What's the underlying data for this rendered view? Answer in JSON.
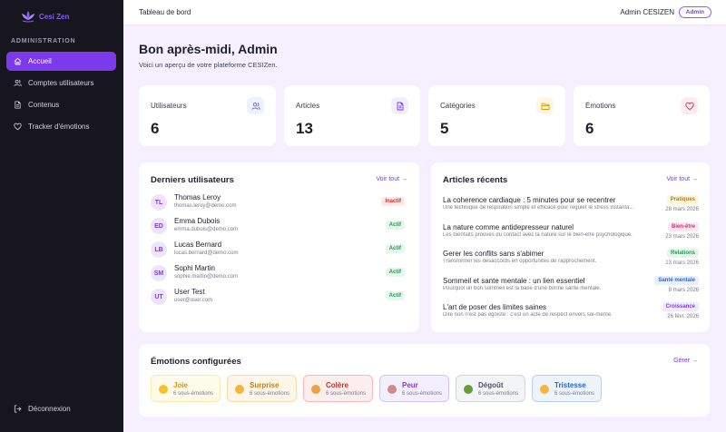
{
  "app": {
    "name": "Cesi Zen"
  },
  "sidebar": {
    "section": "ADMINISTRATION",
    "items": [
      {
        "label": "Accueil",
        "icon": "home-icon",
        "active": true
      },
      {
        "label": "Comptes utilisateurs",
        "icon": "users-icon",
        "active": false
      },
      {
        "label": "Contenus",
        "icon": "document-icon",
        "active": false
      },
      {
        "label": "Tracker d'émotions",
        "icon": "heart-icon",
        "active": false
      }
    ],
    "logout": "Déconnexion"
  },
  "topbar": {
    "breadcrumb": "Tableau de bord",
    "user": "Admin CESIZEN",
    "role_badge": "Admin"
  },
  "greeting": {
    "title": "Bon après-midi, Admin",
    "subtitle": "Voici un aperçu de votre plateforme CESIZen."
  },
  "stats": [
    {
      "label": "Utilisateurs",
      "value": "6",
      "icon": "users-icon",
      "bg": "#eef2ff",
      "fg": "#6366f1"
    },
    {
      "label": "Articles",
      "value": "13",
      "icon": "document-icon",
      "bg": "#f1eefe",
      "fg": "#7c3aed"
    },
    {
      "label": "Catégories",
      "value": "5",
      "icon": "folder-icon",
      "bg": "#fef6e4",
      "fg": "#d99a06"
    },
    {
      "label": "Émotions",
      "value": "6",
      "icon": "heart-icon",
      "bg": "#fdecef",
      "fg": "#e11d48"
    }
  ],
  "users_card": {
    "title": "Derniers utilisateurs",
    "link": "Voir tout →",
    "rows": [
      {
        "initials": "TL",
        "name": "Thomas Leroy",
        "email": "thomas.leroy@demo.com",
        "status": "Inactif",
        "active": false
      },
      {
        "initials": "ED",
        "name": "Emma Dubois",
        "email": "emma.dubois@demo.com",
        "status": "Actif",
        "active": true
      },
      {
        "initials": "LB",
        "name": "Lucas Bernard",
        "email": "lucas.bernard@demo.com",
        "status": "Actif",
        "active": true
      },
      {
        "initials": "SM",
        "name": "Sophi Martin",
        "email": "sophie.martin@demo.com",
        "status": "Actif",
        "active": true
      },
      {
        "initials": "UT",
        "name": "User Test",
        "email": "user@user.com",
        "status": "Actif",
        "active": true
      }
    ]
  },
  "articles_card": {
    "title": "Articles récents",
    "link": "Voir tout →",
    "rows": [
      {
        "title": "La coherence cardiaque : 5 minutes pour se recentrer",
        "desc": "Une technique de respiration simple et efficace pour reguler le stress instanta...",
        "tag": "Pratiques",
        "tag_bg": "#fef6d8",
        "tag_fg": "#b7791f",
        "date": "28 mars 2026"
      },
      {
        "title": "La nature comme antidepresseur naturel",
        "desc": "Les bienfaits prouves du contact avec la nature sur le bien-etre psychologique.",
        "tag": "Bien-être",
        "tag_bg": "#fde8ef",
        "tag_fg": "#db2777",
        "date": "23 mars 2026"
      },
      {
        "title": "Gerer les conflits sans s'abimer",
        "desc": "Transformer les desaccords en opportunites de rapprochement.",
        "tag": "Relations",
        "tag_bg": "#e5f7ec",
        "tag_fg": "#16a34a",
        "date": "13 mars 2026"
      },
      {
        "title": "Sommeil et sante mentale : un lien essentiel",
        "desc": "Pourquoi un bon sommeil est la base d'une bonne sante mentale.",
        "tag": "Santé mentale",
        "tag_bg": "#e8f0fe",
        "tag_fg": "#2563eb",
        "date": "8 mars 2026"
      },
      {
        "title": "L'art de poser des limites saines",
        "desc": "Dire non n'est pas egoiste : c'est un acte de respect envers soi-meme.",
        "tag": "Croissance",
        "tag_bg": "#f1eafe",
        "tag_fg": "#7c3aed",
        "date": "26 févr. 2026"
      }
    ]
  },
  "emotions_card": {
    "title": "Émotions configurées",
    "link": "Gérer →",
    "items": [
      {
        "name": "Joie",
        "sub": "6 sous-émotions",
        "color": "#d99a06",
        "bg": "#fffaea",
        "border": "#fde9a8",
        "face": "#f2c230"
      },
      {
        "name": "Surprise",
        "sub": "6 sous-émotions",
        "color": "#d97706",
        "bg": "#fff6ea",
        "border": "#fcd9a8",
        "face": "#f2b640"
      },
      {
        "name": "Colère",
        "sub": "6 sous-émotions",
        "color": "#dc2626",
        "bg": "#fdeeee",
        "border": "#f7b9b9",
        "face": "#f0a040"
      },
      {
        "name": "Peur",
        "sub": "6 sous-émotions",
        "color": "#7c3aed",
        "bg": "#f3effe",
        "border": "#d4c4fb",
        "face": "#d08a8a"
      },
      {
        "name": "Dégoût",
        "sub": "6 sous-émotions",
        "color": "#4b5563",
        "bg": "#f3f4f6",
        "border": "#d1d5db",
        "face": "#6a9a3a"
      },
      {
        "name": "Tristesse",
        "sub": "6 sous-émotions",
        "color": "#2563eb",
        "bg": "#eef4fe",
        "border": "#b9d0fa",
        "face": "#f2b640"
      }
    ]
  }
}
